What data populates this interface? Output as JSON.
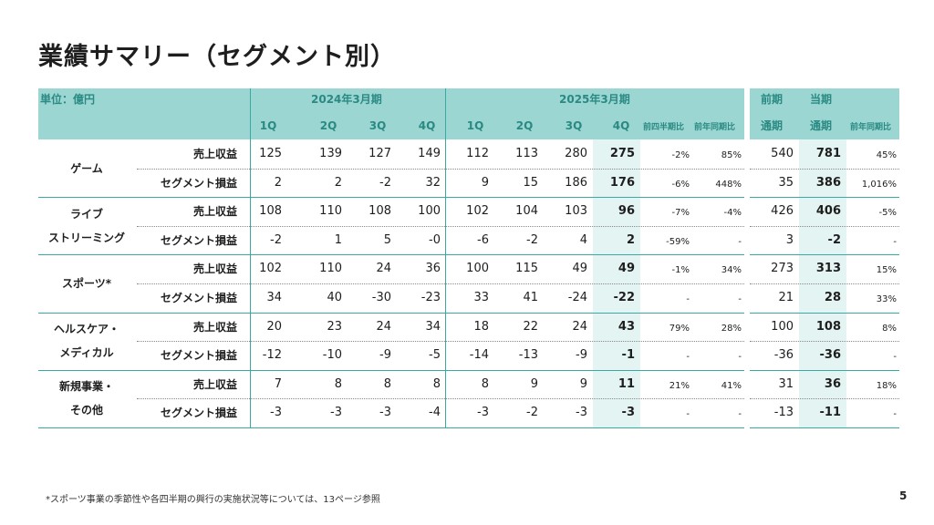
{
  "title": "業績サマリー（セグメント別）",
  "header": {
    "unit_label": "単位：億円",
    "fy2024_label": "2024年3月期",
    "fy2025_label": "2025年3月期",
    "prev_label": "前期",
    "curr_label": "当期",
    "q_labels_2024": [
      "1Q",
      "2Q",
      "3Q",
      "4Q"
    ],
    "q_labels_2025": [
      "1Q",
      "2Q",
      "3Q",
      "4Q"
    ],
    "qoq_label": "前四半期比",
    "yoy_label": "前年同期比",
    "full_prev": "通期",
    "full_curr": "通期",
    "full_yoy": "前年同期比"
  },
  "segments": [
    {
      "name_lines": [
        "ゲーム"
      ],
      "rows": [
        {
          "metric": "売上収益",
          "fy24": [
            "125",
            "139",
            "127",
            "149"
          ],
          "fy25": [
            "112",
            "113",
            "280",
            "275"
          ],
          "qoq": "-2%",
          "yoy": "85%",
          "prev": "540",
          "curr": "781",
          "full_yoy": "45%"
        },
        {
          "metric": "セグメント損益",
          "fy24": [
            "2",
            "2",
            "-2",
            "32"
          ],
          "fy25": [
            "9",
            "15",
            "186",
            "176"
          ],
          "qoq": "-6%",
          "yoy": "448%",
          "prev": "35",
          "curr": "386",
          "full_yoy": "1,016%"
        }
      ]
    },
    {
      "name_lines": [
        "ライブ",
        "ストリーミング"
      ],
      "rows": [
        {
          "metric": "売上収益",
          "fy24": [
            "108",
            "110",
            "108",
            "100"
          ],
          "fy25": [
            "102",
            "104",
            "103",
            "96"
          ],
          "qoq": "-7%",
          "yoy": "-4%",
          "prev": "426",
          "curr": "406",
          "full_yoy": "-5%"
        },
        {
          "metric": "セグメント損益",
          "fy24": [
            "-2",
            "1",
            "5",
            "-0"
          ],
          "fy25": [
            "-6",
            "-2",
            "4",
            "2"
          ],
          "qoq": "-59%",
          "yoy": "-",
          "prev": "3",
          "curr": "-2",
          "full_yoy": "-"
        }
      ]
    },
    {
      "name_lines": [
        "スポーツ*"
      ],
      "rows": [
        {
          "metric": "売上収益",
          "fy24": [
            "102",
            "110",
            "24",
            "36"
          ],
          "fy25": [
            "100",
            "115",
            "49",
            "49"
          ],
          "qoq": "-1%",
          "yoy": "34%",
          "prev": "273",
          "curr": "313",
          "full_yoy": "15%"
        },
        {
          "metric": "セグメント損益",
          "fy24": [
            "34",
            "40",
            "-30",
            "-23"
          ],
          "fy25": [
            "33",
            "41",
            "-24",
            "-22"
          ],
          "qoq": "-",
          "yoy": "-",
          "prev": "21",
          "curr": "28",
          "full_yoy": "33%"
        }
      ]
    },
    {
      "name_lines": [
        "ヘルスケア・",
        "メディカル"
      ],
      "rows": [
        {
          "metric": "売上収益",
          "fy24": [
            "20",
            "23",
            "24",
            "34"
          ],
          "fy25": [
            "18",
            "22",
            "24",
            "43"
          ],
          "qoq": "79%",
          "yoy": "28%",
          "prev": "100",
          "curr": "108",
          "full_yoy": "8%"
        },
        {
          "metric": "セグメント損益",
          "fy24": [
            "-12",
            "-10",
            "-9",
            "-5"
          ],
          "fy25": [
            "-14",
            "-13",
            "-9",
            "-1"
          ],
          "qoq": "-",
          "yoy": "-",
          "prev": "-36",
          "curr": "-36",
          "full_yoy": "-"
        }
      ]
    },
    {
      "name_lines": [
        "新規事業・",
        "その他"
      ],
      "rows": [
        {
          "metric": "売上収益",
          "fy24": [
            "7",
            "8",
            "8",
            "8"
          ],
          "fy25": [
            "8",
            "9",
            "9",
            "11"
          ],
          "qoq": "21%",
          "yoy": "41%",
          "prev": "31",
          "curr": "36",
          "full_yoy": "18%"
        },
        {
          "metric": "セグメント損益",
          "fy24": [
            "-3",
            "-3",
            "-3",
            "-4"
          ],
          "fy25": [
            "-3",
            "-2",
            "-3",
            "-3"
          ],
          "qoq": "-",
          "yoy": "-",
          "prev": "-13",
          "curr": "-11",
          "full_yoy": "-"
        }
      ]
    }
  ],
  "footnote": "*スポーツ事業の季節性や各四半期の興行の実施状況等については、13ページ参照",
  "page_number": "5",
  "colors": {
    "header_bg": "#9cd6d2",
    "header_text": "#2a8a83",
    "highlight": "#e4f4f2",
    "rule": "#3aa9a1"
  }
}
